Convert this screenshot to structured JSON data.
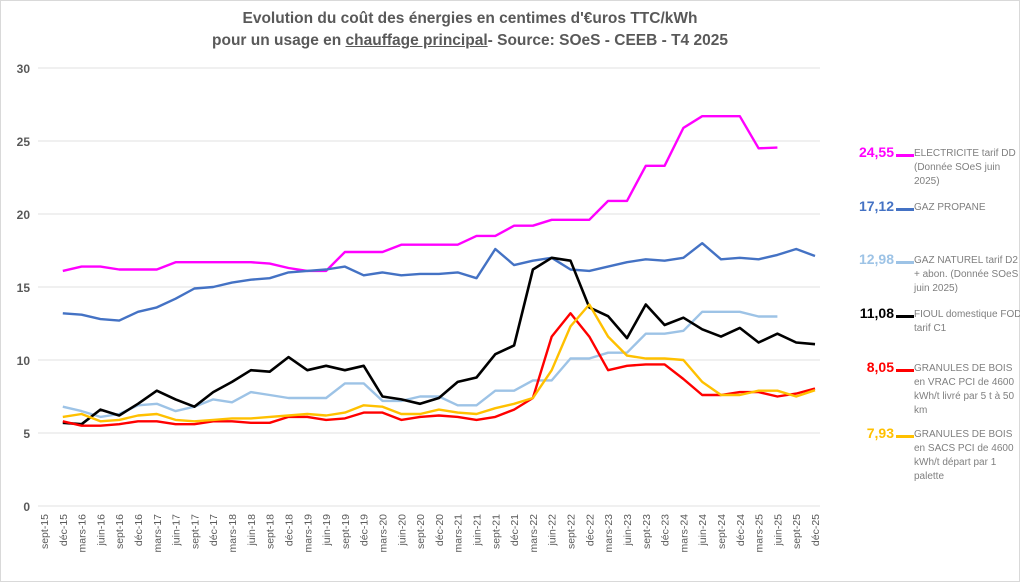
{
  "chart_data": {
    "type": "line",
    "title_line1": "Evolution du coût des énergies en centimes d'€uros TTC/kWh",
    "title_line2_pre": "pour un usage en ",
    "title_line2_underlined": "chauffage principal",
    "title_line2_post": "- Source: SOeS - CEEB - T4 2025",
    "ylim": [
      0,
      30
    ],
    "yticks": [
      0,
      5,
      10,
      15,
      20,
      25,
      30
    ],
    "grid": true,
    "legend_placement": "right",
    "categories": [
      "sept-15",
      "déc-15",
      "mars-16",
      "juin-16",
      "sept-16",
      "déc-16",
      "mars-17",
      "juin-17",
      "sept-17",
      "déc-17",
      "mars-18",
      "juin-18",
      "sept-18",
      "déc-18",
      "mars-19",
      "juin-19",
      "sept-19",
      "déc-19",
      "mars-20",
      "juin-20",
      "sept-20",
      "déc-20",
      "mars-21",
      "juin-21",
      "sept-21",
      "déc-21",
      "mars-22",
      "juin-22",
      "sept-22",
      "déc-22",
      "mars-23",
      "juin-23",
      "sept-23",
      "déc-23",
      "mars-24",
      "juin-24",
      "sept-24",
      "déc-24",
      "mars-25",
      "juin-25",
      "sept-25",
      "déc-25"
    ],
    "series": [
      {
        "name": "ELECTRICITE tarif DD (Donnée SOeS juin 2025)",
        "color": "#ff00ff",
        "last_label": "24,55",
        "values": [
          null,
          16.1,
          16.4,
          16.4,
          16.2,
          16.2,
          16.2,
          16.7,
          16.7,
          16.7,
          16.7,
          16.7,
          16.6,
          16.3,
          16.1,
          16.1,
          17.4,
          17.4,
          17.4,
          17.9,
          17.9,
          17.9,
          17.9,
          18.5,
          18.5,
          19.2,
          19.2,
          19.6,
          19.6,
          19.6,
          20.9,
          20.9,
          23.3,
          23.3,
          25.9,
          26.7,
          26.7,
          26.7,
          24.5,
          24.55,
          null,
          null
        ]
      },
      {
        "name": "GAZ PROPANE",
        "color": "#4472c4",
        "last_label": "17,12",
        "values": [
          null,
          13.2,
          13.1,
          12.8,
          12.7,
          13.3,
          13.6,
          14.2,
          14.9,
          15.0,
          15.3,
          15.5,
          15.6,
          16.0,
          16.1,
          16.2,
          16.4,
          15.8,
          16.0,
          15.8,
          15.9,
          15.9,
          16.0,
          15.6,
          17.6,
          16.5,
          16.8,
          17.0,
          16.2,
          16.1,
          16.4,
          16.7,
          16.9,
          16.8,
          17.0,
          18.0,
          16.9,
          17.0,
          16.9,
          17.2,
          17.6,
          17.12
        ]
      },
      {
        "name": "GAZ NATUREL tarif D2 + abon. (Donnée SOeS juin 2025)",
        "color": "#9dc3e6",
        "last_label": "12,98",
        "values": [
          null,
          6.8,
          6.5,
          6.1,
          6.3,
          6.9,
          7.0,
          6.5,
          6.8,
          7.3,
          7.1,
          7.8,
          7.6,
          7.4,
          7.4,
          7.4,
          8.4,
          8.4,
          7.2,
          7.2,
          7.5,
          7.5,
          6.9,
          6.9,
          7.9,
          7.9,
          8.6,
          8.6,
          10.1,
          10.1,
          10.5,
          10.5,
          11.8,
          11.8,
          12.0,
          13.3,
          13.3,
          13.3,
          12.98,
          12.98,
          null,
          null
        ]
      },
      {
        "name": "FIOUL domestique FOD tarif C1",
        "color": "#000000",
        "last_label": "11,08",
        "values": [
          null,
          5.7,
          5.6,
          6.6,
          6.2,
          7.0,
          7.9,
          7.3,
          6.8,
          7.8,
          8.5,
          9.3,
          9.2,
          10.2,
          9.3,
          9.6,
          9.3,
          9.6,
          7.5,
          7.3,
          7.0,
          7.4,
          8.5,
          8.8,
          10.4,
          11.0,
          16.2,
          17.0,
          16.8,
          13.6,
          13.0,
          11.5,
          13.8,
          12.4,
          12.9,
          12.1,
          11.6,
          12.2,
          11.2,
          11.8,
          11.2,
          11.08
        ]
      },
      {
        "name": "GRANULES DE BOIS en VRAC  PCI de 4600 kWh/t livré par 5 t à 50 km",
        "color": "#ff0000",
        "last_label": "8,05",
        "values": [
          null,
          5.8,
          5.5,
          5.5,
          5.6,
          5.8,
          5.8,
          5.6,
          5.6,
          5.8,
          5.8,
          5.7,
          5.7,
          6.1,
          6.1,
          5.9,
          6.0,
          6.4,
          6.4,
          5.9,
          6.1,
          6.2,
          6.1,
          5.9,
          6.1,
          6.6,
          7.4,
          11.6,
          13.2,
          11.6,
          9.3,
          9.6,
          9.7,
          9.7,
          8.7,
          7.6,
          7.6,
          7.8,
          7.8,
          7.5,
          7.7,
          8.05
        ]
      },
      {
        "name": "GRANULES DE BOIS en SACS PCI de 4600 kWh/t départ par 1 palette",
        "color": "#ffc000",
        "last_label": "7,93",
        "values": [
          null,
          6.1,
          6.3,
          5.8,
          5.9,
          6.2,
          6.3,
          5.9,
          5.8,
          5.9,
          6.0,
          6.0,
          6.1,
          6.2,
          6.3,
          6.2,
          6.4,
          6.9,
          6.8,
          6.3,
          6.3,
          6.6,
          6.4,
          6.3,
          6.7,
          7.0,
          7.4,
          9.3,
          12.3,
          13.8,
          11.6,
          10.3,
          10.1,
          10.1,
          10.0,
          8.5,
          7.6,
          7.6,
          7.9,
          7.9,
          7.5,
          7.93
        ]
      }
    ]
  }
}
